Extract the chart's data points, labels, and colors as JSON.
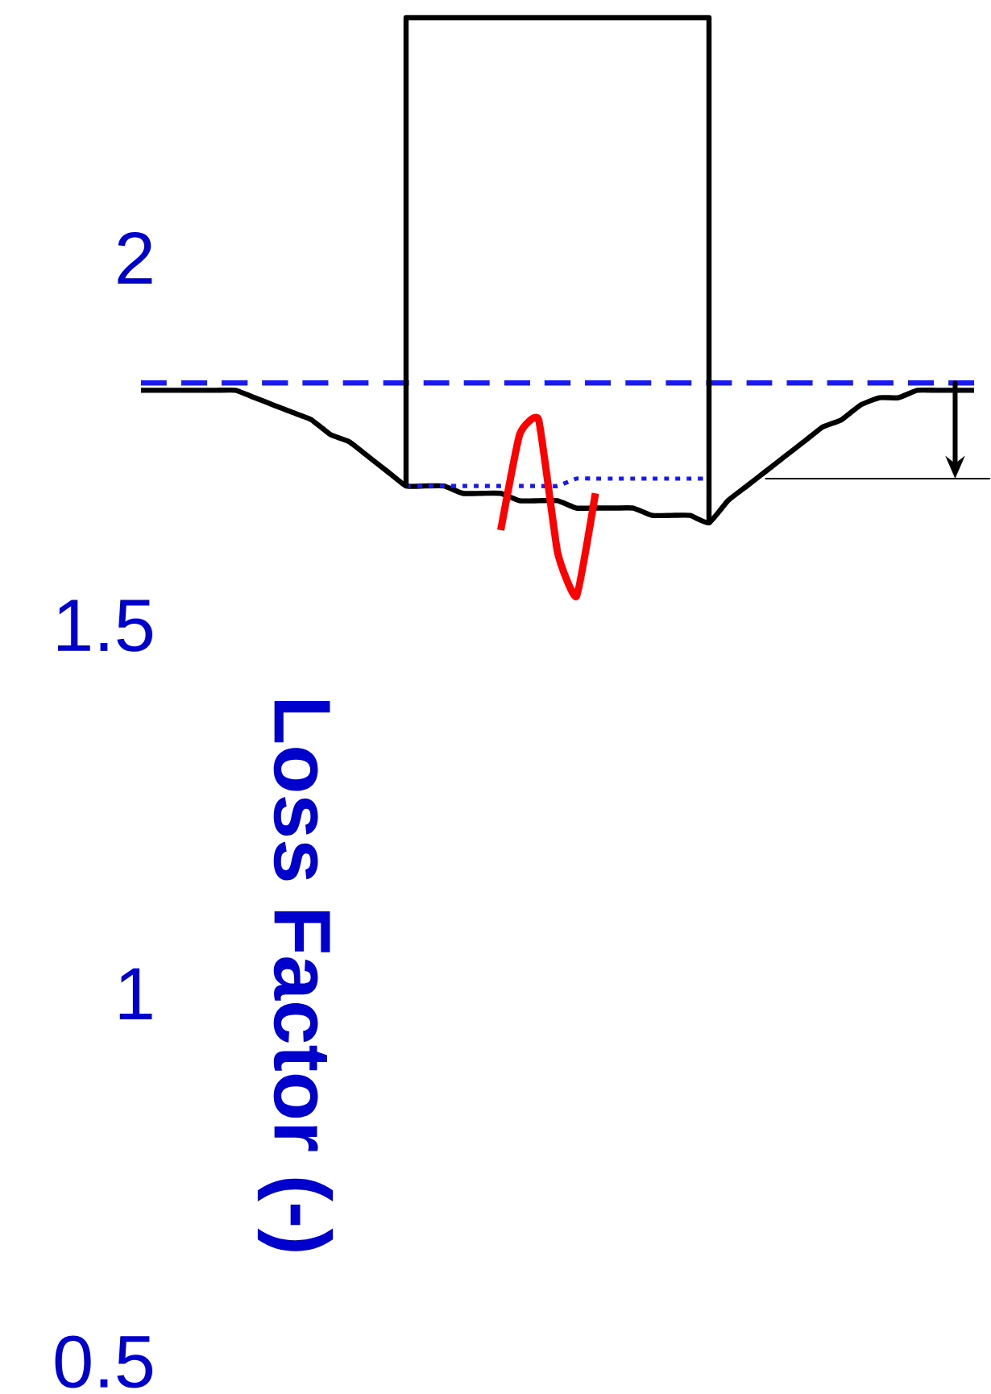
{
  "chart_data": {
    "type": "line",
    "ylabel": "Loss Factor (-)",
    "categories": [
      null,
      null,
      null,
      null,
      null,
      null,
      null,
      null,
      null,
      null,
      null,
      null,
      null,
      null,
      null,
      null,
      null,
      null,
      null,
      null,
      null,
      null,
      null,
      null,
      null,
      null,
      null,
      null,
      null,
      null,
      null,
      null,
      null,
      null,
      null,
      null,
      null,
      null,
      null,
      null,
      null,
      null,
      null,
      null,
      null
    ],
    "series": [
      {
        "color": "#000000",
        "line_style": "solid",
        "values": [
          1.82,
          1.82,
          1.82,
          1.82,
          1.82,
          1.82,
          1.81,
          1.8,
          1.79,
          1.78,
          1.76,
          1.75,
          1.73,
          1.71,
          1.69,
          1.69,
          1.69,
          1.68,
          1.68,
          1.68,
          1.67,
          1.67,
          1.67,
          1.66,
          1.66,
          1.66,
          1.66,
          1.65,
          1.65,
          1.65,
          1.64,
          1.67,
          1.69,
          1.71,
          1.73,
          1.75,
          1.77,
          1.78,
          1.8,
          1.81,
          1.81,
          1.82,
          1.82,
          1.82,
          1.82
        ]
      },
      {
        "color": "#1a1aee",
        "line_style": "dashed",
        "values": [
          1.83,
          1.83,
          1.83,
          1.83,
          1.83,
          1.83,
          1.83,
          1.83,
          1.83,
          1.83,
          1.83,
          1.83,
          1.83,
          1.83,
          1.83,
          1.83,
          1.83,
          1.83,
          1.83,
          1.83,
          1.83,
          1.83,
          1.83,
          1.83,
          1.83,
          1.83,
          1.83,
          1.83,
          1.83,
          1.83,
          1.83,
          1.83,
          1.83,
          1.83,
          1.83,
          1.83,
          1.83,
          1.83,
          1.83,
          1.83,
          1.83,
          1.83,
          1.83,
          1.83,
          1.83
        ]
      },
      {
        "color": "#1a1aee",
        "line_style": "dotted",
        "values": [
          null,
          null,
          null,
          null,
          null,
          null,
          null,
          null,
          null,
          null,
          null,
          null,
          null,
          null,
          1.69,
          1.69,
          1.69,
          1.69,
          1.69,
          1.69,
          1.69,
          1.69,
          1.69,
          1.7,
          1.7,
          1.7,
          1.7,
          1.7,
          1.7,
          1.7,
          1.7,
          null,
          null,
          null,
          null,
          null,
          null,
          null,
          null,
          null,
          null,
          null,
          null,
          null,
          null
        ]
      },
      {
        "color": "#ff0000",
        "line_style": "solid",
        "values": [
          null,
          null,
          null,
          null,
          null,
          null,
          null,
          null,
          null,
          null,
          null,
          null,
          null,
          null,
          null,
          null,
          null,
          null,
          null,
          1.63,
          1.76,
          1.78,
          1.6,
          1.54,
          1.68,
          null,
          null,
          null,
          null,
          null,
          null,
          null,
          null,
          null,
          null,
          null,
          null,
          null,
          null,
          null,
          null,
          null,
          null,
          null,
          null
        ]
      }
    ],
    "ylim": [
      0.5,
      2
    ],
    "yticks": [
      0.5,
      1,
      1.5,
      2
    ],
    "tick_labels": "y"
  }
}
